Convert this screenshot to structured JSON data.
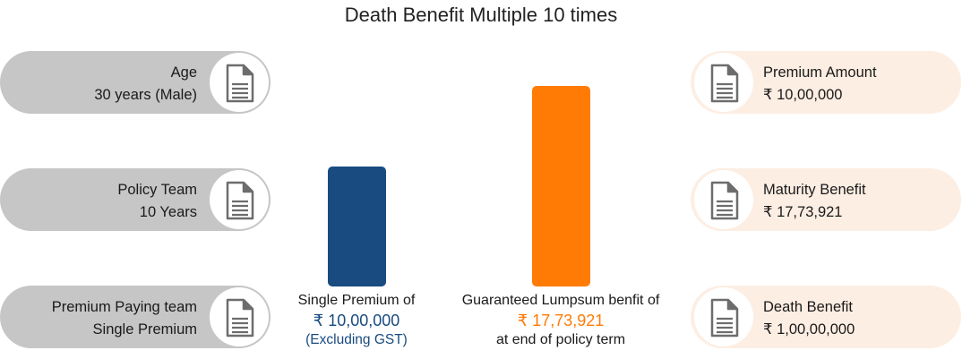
{
  "title": "Death Benefit Multiple 10 times",
  "left_items": [
    {
      "label": "Age",
      "value": "30 years (Male)",
      "icon": "document-icon"
    },
    {
      "label": "Policy Team",
      "value": "10 Years",
      "icon": "document-icon"
    },
    {
      "label": "Premium Paying team",
      "value": "Single Premium",
      "icon": "document-icon"
    }
  ],
  "right_items": [
    {
      "label": "Premium Amount",
      "value": "₹ 10,00,000",
      "icon": "document-icon"
    },
    {
      "label": "Maturity Benefit",
      "value": "₹ 17,73,921",
      "icon": "document-icon"
    },
    {
      "label": "Death Benefit",
      "value": "₹ 1,00,00,000",
      "icon": "document-icon"
    }
  ],
  "bars": {
    "single_premium": {
      "line1": "Single Premium of",
      "amount": "₹ 10,00,000",
      "line3": "(Excluding GST)",
      "value": 1000000
    },
    "lumpsum": {
      "line1": "Guaranteed Lumpsum benfit of",
      "amount": "₹ 17,73,921",
      "line3": "at end of policy term",
      "value": 1773921
    }
  },
  "colors": {
    "blue": "#194b80",
    "orange": "#ff7b06",
    "left_pill": "#c6c6c6",
    "right_pill": "#fdeee3",
    "icon_stroke": "#6d6d6d"
  }
}
